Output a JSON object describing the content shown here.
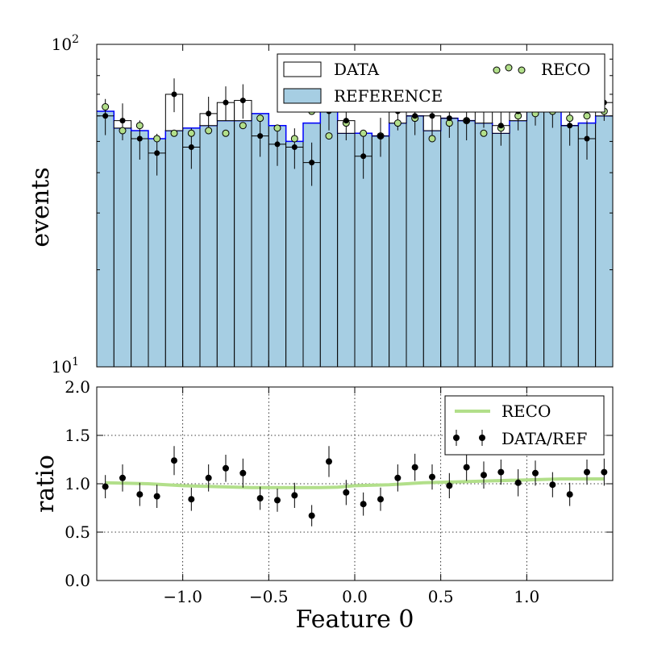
{
  "chart_data": [
    {
      "type": "bar",
      "panel": "top",
      "ylabel": "events",
      "yscale": "log",
      "ylim": [
        10,
        100
      ],
      "xlim": [
        -1.5,
        1.5
      ],
      "bin_width": 0.1,
      "x_centers": [
        -1.45,
        -1.35,
        -1.25,
        -1.15,
        -1.05,
        -0.95,
        -0.85,
        -0.75,
        -0.65,
        -0.55,
        -0.45,
        -0.35,
        -0.25,
        -0.15,
        -0.05,
        0.05,
        0.15,
        0.25,
        0.35,
        0.45,
        0.55,
        0.65,
        0.75,
        0.85,
        0.95,
        1.05,
        1.15,
        1.25,
        1.35,
        1.45
      ],
      "y_tick_labels": [
        "10",
        "10",
        "2",
        "1",
        "1"
      ],
      "series": [
        {
          "name": "DATA",
          "kind": "step-hist",
          "values": [
            60,
            58,
            51,
            46,
            70,
            48,
            61,
            66,
            67,
            52,
            49,
            48,
            43,
            62,
            58,
            45,
            52,
            62,
            60,
            60,
            59,
            58,
            63,
            56,
            62,
            64,
            63,
            56,
            51,
            66
          ]
        },
        {
          "name": "REFERENCE",
          "kind": "filled-hist",
          "values": [
            62,
            55,
            54,
            51,
            54,
            55,
            56,
            58,
            58,
            61,
            56,
            50,
            57,
            62,
            53,
            53,
            52,
            57,
            60,
            54,
            59,
            58,
            57,
            53,
            58,
            62,
            64,
            56,
            57,
            60
          ]
        },
        {
          "name": "RECO",
          "kind": "points",
          "values": [
            64,
            54,
            56,
            51,
            53,
            53,
            54,
            53,
            56,
            59,
            55,
            51,
            62,
            52,
            57,
            53,
            52,
            57,
            59,
            51,
            57,
            58,
            53,
            55,
            60,
            61,
            62,
            59,
            60,
            62
          ]
        }
      ],
      "data_errors": [
        7.7,
        7.6,
        7.1,
        6.8,
        8.4,
        6.9,
        7.8,
        8.1,
        8.2,
        7.2,
        7.0,
        6.9,
        6.6,
        7.9,
        7.6,
        6.7,
        7.2,
        7.9,
        7.7,
        7.7,
        7.7,
        7.6,
        7.9,
        7.5,
        7.9,
        8.0,
        7.9,
        7.5,
        7.1,
        8.1
      ],
      "legend": {
        "placement": "top-right",
        "entries": [
          "DATA",
          "RECO",
          "REFERENCE"
        ]
      },
      "colors": {
        "reference_fill": "#a6cee3",
        "reference_edge": "#0000ff",
        "reco_marker": "#b2df8a",
        "data_edge": "#000000"
      }
    },
    {
      "type": "scatter",
      "panel": "bottom",
      "xlabel": "Feature 0",
      "ylabel": "ratio",
      "xlim": [
        -1.5,
        1.5
      ],
      "ylim": [
        0.0,
        2.0
      ],
      "grid": true,
      "x_ticks": [
        -1.0,
        -0.5,
        0.0,
        0.5,
        1.0
      ],
      "x_tick_labels": [
        "−1.0",
        "−0.5",
        "0.0",
        "0.5",
        "1.0"
      ],
      "y_ticks": [
        0.0,
        0.5,
        1.0,
        1.5,
        2.0
      ],
      "y_tick_labels": [
        "0.0",
        "0.5",
        "1.0",
        "1.5",
        "2.0"
      ],
      "x_centers": [
        -1.45,
        -1.35,
        -1.25,
        -1.15,
        -1.05,
        -0.95,
        -0.85,
        -0.75,
        -0.65,
        -0.55,
        -0.45,
        -0.35,
        -0.25,
        -0.15,
        -0.05,
        0.05,
        0.15,
        0.25,
        0.35,
        0.45,
        0.55,
        0.65,
        0.75,
        0.85,
        0.95,
        1.05,
        1.15,
        1.25,
        1.35,
        1.45
      ],
      "series": [
        {
          "name": "RECO",
          "kind": "line",
          "x": [
            -1.45,
            -1.2,
            -1.0,
            -0.8,
            -0.6,
            -0.4,
            -0.2,
            -0.1,
            0.0,
            0.2,
            0.4,
            0.6,
            0.8,
            1.0,
            1.2,
            1.45
          ],
          "values": [
            1.01,
            1.0,
            0.98,
            0.97,
            0.96,
            0.96,
            0.96,
            0.965,
            0.98,
            0.99,
            1.01,
            1.02,
            1.03,
            1.04,
            1.05,
            1.05
          ]
        },
        {
          "name": "DATA/REF",
          "kind": "errorbar",
          "values": [
            0.97,
            1.06,
            0.89,
            0.87,
            1.24,
            0.84,
            1.06,
            1.16,
            1.11,
            0.85,
            0.83,
            0.88,
            0.67,
            1.23,
            0.91,
            0.79,
            0.84,
            1.06,
            1.17,
            1.07,
            0.98,
            1.17,
            1.09,
            1.12,
            1.01,
            1.11,
            0.99,
            0.89,
            1.12,
            1.12
          ],
          "errors": [
            0.12,
            0.14,
            0.12,
            0.12,
            0.15,
            0.12,
            0.14,
            0.14,
            0.15,
            0.12,
            0.12,
            0.13,
            0.11,
            0.16,
            0.13,
            0.12,
            0.12,
            0.14,
            0.14,
            0.13,
            0.13,
            0.14,
            0.14,
            0.13,
            0.14,
            0.13,
            0.13,
            0.12,
            0.13,
            0.14
          ]
        }
      ],
      "legend": {
        "placement": "top-right",
        "entries": [
          "RECO",
          "DATA/REF"
        ]
      }
    }
  ]
}
